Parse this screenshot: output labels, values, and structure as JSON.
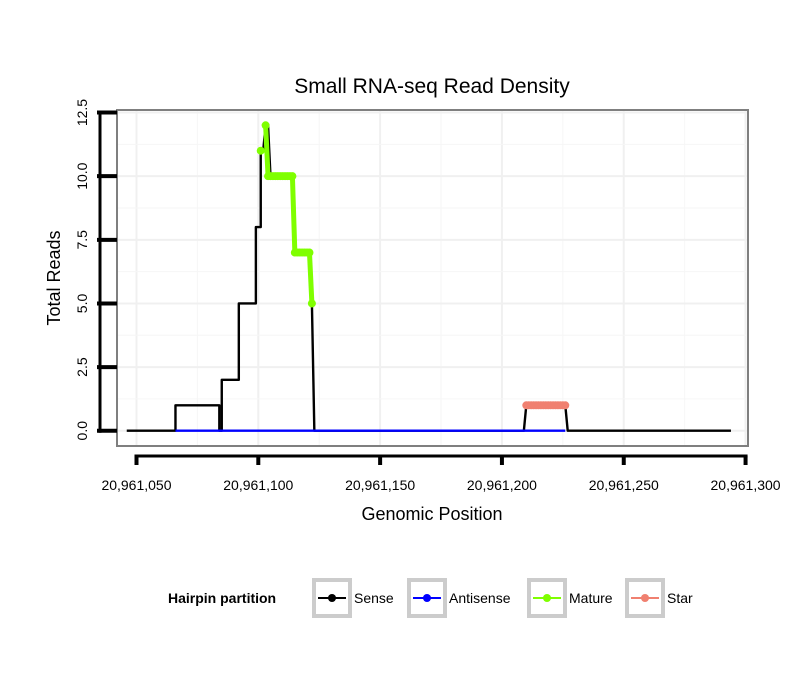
{
  "chart_data": {
    "type": "line",
    "title": "Small RNA-seq Read Density",
    "xlabel": "Genomic Position",
    "ylabel": "Total Reads",
    "xlim": [
      20961042,
      20961301
    ],
    "ylim": [
      -0.6,
      12.6
    ],
    "xticks": [
      20961050,
      20961100,
      20961150,
      20961200,
      20961250,
      20961300
    ],
    "xtick_labels": [
      "20,961,050",
      "20,961,100",
      "20,961,150",
      "20,961,200",
      "20,961,250",
      "20,961,300"
    ],
    "yticks": [
      0,
      2.5,
      5,
      7.5,
      10,
      12.5
    ],
    "ytick_labels": [
      "0.0",
      "2.5",
      "5.0",
      "7.5",
      "10.0",
      "12.5"
    ],
    "grid": true,
    "series": [
      {
        "name": "Sense",
        "color": "#000000",
        "points": [
          [
            20961046,
            0
          ],
          [
            20961066,
            0
          ],
          [
            20961066,
            1
          ],
          [
            20961084,
            1
          ],
          [
            20961084,
            0
          ],
          [
            20961085,
            0
          ],
          [
            20961085,
            2
          ],
          [
            20961092,
            2
          ],
          [
            20961092,
            5
          ],
          [
            20961099,
            5
          ],
          [
            20961099,
            8
          ],
          [
            20961101,
            8
          ],
          [
            20961101,
            11
          ],
          [
            20961102,
            11
          ],
          [
            20961103,
            12
          ],
          [
            20961104,
            12
          ],
          [
            20961105,
            10
          ],
          [
            20961114,
            10
          ],
          [
            20961115,
            7
          ],
          [
            20961121,
            7
          ],
          [
            20961122,
            5
          ],
          [
            20961123,
            0
          ],
          [
            20961209,
            0
          ],
          [
            20961210,
            1
          ],
          [
            20961226,
            1
          ],
          [
            20961227,
            0
          ],
          [
            20961294,
            0
          ]
        ]
      },
      {
        "name": "Antisense",
        "color": "#0000ff",
        "points": [
          [
            20961066,
            0
          ],
          [
            20961123,
            0
          ],
          [
            20961209,
            0
          ],
          [
            20961226,
            0
          ]
        ]
      },
      {
        "name": "Mature",
        "color": "#7fff00",
        "points": [
          [
            20961101,
            11
          ],
          [
            20961103,
            12
          ],
          [
            20961104,
            10
          ],
          [
            20961105,
            10
          ],
          [
            20961106,
            10
          ],
          [
            20961107,
            10
          ],
          [
            20961108,
            10
          ],
          [
            20961109,
            10
          ],
          [
            20961110,
            10
          ],
          [
            20961111,
            10
          ],
          [
            20961112,
            10
          ],
          [
            20961113,
            10
          ],
          [
            20961114,
            10
          ],
          [
            20961115,
            7
          ],
          [
            20961116,
            7
          ],
          [
            20961117,
            7
          ],
          [
            20961118,
            7
          ],
          [
            20961119,
            7
          ],
          [
            20961120,
            7
          ],
          [
            20961121,
            7
          ],
          [
            20961122,
            5
          ]
        ]
      },
      {
        "name": "Star",
        "color": "#f08070",
        "points": [
          [
            20961210,
            1
          ],
          [
            20961211,
            1
          ],
          [
            20961212,
            1
          ],
          [
            20961213,
            1
          ],
          [
            20961214,
            1
          ],
          [
            20961215,
            1
          ],
          [
            20961216,
            1
          ],
          [
            20961217,
            1
          ],
          [
            20961218,
            1
          ],
          [
            20961219,
            1
          ],
          [
            20961220,
            1
          ],
          [
            20961221,
            1
          ],
          [
            20961222,
            1
          ],
          [
            20961223,
            1
          ],
          [
            20961224,
            1
          ],
          [
            20961225,
            1
          ],
          [
            20961226,
            1
          ]
        ]
      }
    ],
    "legend": {
      "title": "Hairpin partition",
      "position": "bottom",
      "entries": [
        "Sense",
        "Antisense",
        "Mature",
        "Star"
      ]
    }
  }
}
